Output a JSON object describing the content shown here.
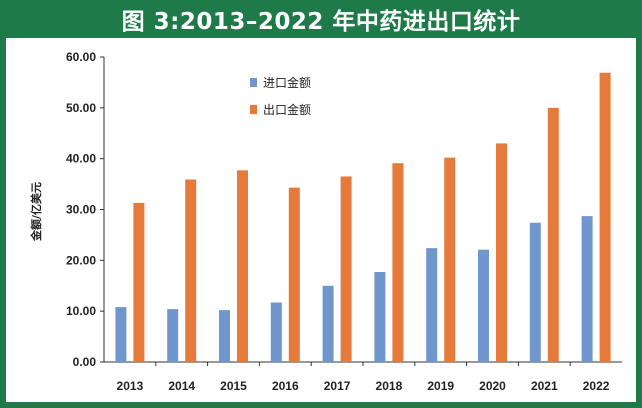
{
  "title": "图 3:2013–2022 年中药进出口统计",
  "chart_data": {
    "type": "bar",
    "categories": [
      "2013",
      "2014",
      "2015",
      "2016",
      "2017",
      "2018",
      "2019",
      "2020",
      "2021",
      "2022"
    ],
    "series": [
      {
        "name": "进口金额",
        "color": "#6f97cd",
        "values": [
          10.8,
          10.4,
          10.2,
          11.7,
          15.0,
          17.7,
          22.4,
          22.1,
          27.4,
          28.7
        ]
      },
      {
        "name": "出口金额",
        "color": "#e57a3a",
        "values": [
          31.3,
          35.9,
          37.7,
          34.3,
          36.5,
          39.1,
          40.2,
          43.0,
          50.0,
          56.9
        ]
      }
    ],
    "ylabel": "金额/亿美元",
    "ylim": [
      0,
      60
    ],
    "yticks": [
      "0.00",
      "10.00",
      "20.00",
      "30.00",
      "40.00",
      "50.00",
      "60.00"
    ],
    "legend_position": "top-left",
    "grid": false
  }
}
